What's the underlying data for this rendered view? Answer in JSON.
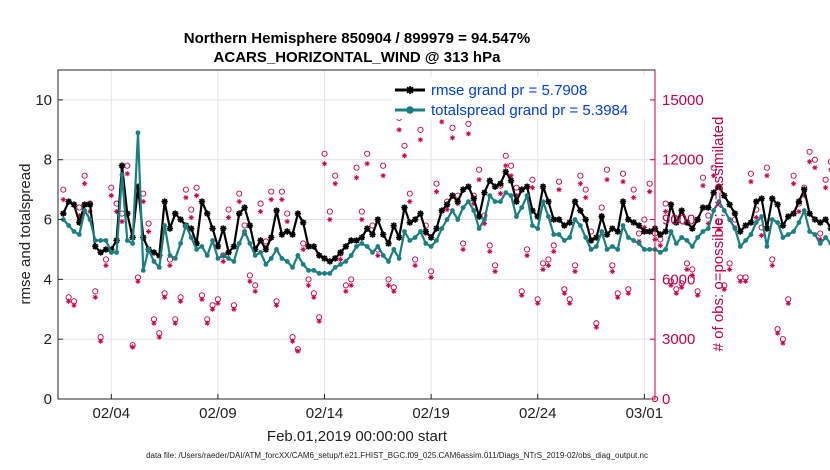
{
  "chart_data": {
    "type": "line",
    "title": "Northern Hemisphere 850904 / 899979 = 94.547%",
    "subtitle": "ACARS_HORIZONTAL_WIND @ 313 hPa",
    "xlabel": "Feb.01,2019 00:00:00 start",
    "ylabel": "rmse and totalspread",
    "ylabel_right": "# of obs: o=possible; ×=assimilated",
    "footer": "data file: /Users/raeder/DAI/ATM_forcXX/CAM6_setup/f.e21.FHIST_BGC.f09_025.CAM6assim.011/Diags_NTrS_2019-02/obs_diag_output.nc",
    "xlim": [
      1,
      29
    ],
    "ylim": [
      0,
      11
    ],
    "ylim_right": [
      0,
      16500
    ],
    "x_ticks": [
      3.5,
      8.5,
      13.5,
      18.5,
      23.5,
      28.5
    ],
    "x_tick_labels": [
      "02/04",
      "02/09",
      "02/14",
      "02/19",
      "02/24",
      "03/01"
    ],
    "y_ticks": [
      0,
      2,
      4,
      6,
      8,
      10
    ],
    "y_tick_labels": [
      "0",
      "2",
      "4",
      "6",
      "8",
      "10"
    ],
    "y_ticks_right": [
      0,
      3000,
      6000,
      9000,
      12000,
      15000
    ],
    "y_tick_labels_right": [
      "0",
      "3000",
      "6000",
      "9000",
      "12000",
      "15000"
    ],
    "grid": true,
    "legend_position": "top-right",
    "series": [
      {
        "name": "rmse grand pr = 5.7908",
        "color": "#000000",
        "marker": "asterisk",
        "axis": "left",
        "values": [
          6.2,
          6.6,
          6.5,
          5.9,
          6.5,
          6.5,
          5.1,
          4.9,
          5.0,
          5.0,
          5.3,
          7.8,
          6.2,
          5.4,
          7.1,
          5.4,
          5.0,
          4.9,
          4.8,
          6.6,
          5.7,
          6.2,
          6.0,
          5.8,
          5.7,
          5.2,
          6.6,
          6.2,
          5.7,
          5.1,
          5.7,
          4.9,
          5.1,
          6.2,
          6.4,
          5.8,
          5.0,
          5.3,
          5.0,
          5.4,
          6.3,
          5.5,
          5.6,
          5.5,
          6.2,
          5.9,
          5.1,
          5.1,
          4.8,
          4.7,
          4.6,
          4.7,
          4.9,
          5.1,
          5.3,
          5.3,
          5.4,
          5.7,
          5.5,
          6.0,
          5.5,
          5.2,
          5.8,
          5.4,
          6.4,
          5.9,
          6.0,
          6.2,
          5.6,
          5.4,
          5.7,
          6.3,
          6.5,
          6.8,
          6.6,
          7.0,
          7.1,
          6.7,
          6.1,
          6.9,
          7.3,
          7.1,
          7.2,
          7.6,
          7.3,
          6.6,
          7.0,
          7.1,
          6.3,
          6.1,
          7.1,
          6.6,
          6.0,
          6.0,
          5.8,
          5.9,
          6.6,
          6.3,
          6.0,
          5.3,
          5.4,
          6.1,
          5.5,
          5.7,
          5.6,
          6.6,
          6.0,
          5.9,
          5.8,
          5.6,
          5.6,
          5.7,
          5.5,
          5.6,
          6.5,
          5.9,
          6.3,
          5.9,
          5.7,
          6.0,
          6.4,
          6.4,
          6.9,
          7.1,
          6.8,
          6.5,
          6.2,
          5.6,
          5.8,
          5.9,
          6.6,
          6.7,
          5.7,
          6.7,
          6.5,
          5.8,
          6.1,
          6.2,
          6.6,
          7.0,
          6.2,
          6.0,
          5.9,
          6.0,
          5.7,
          6.0,
          5.6,
          5.2,
          5.8,
          5.6,
          6.7,
          6.1,
          5.4,
          5.4,
          5.2,
          5.3,
          6.0,
          5.7,
          5.5,
          5.5,
          5.3,
          5.4,
          5.2,
          4.9,
          5.2,
          5.5,
          5.6,
          5.1,
          5.0,
          5.3,
          4.9,
          5.0,
          5.2,
          5.4,
          5.5,
          4.7,
          5.1,
          5.6,
          5.6
        ]
      },
      {
        "name": "totalspread grand pr = 5.3984",
        "color": "#1a7f80",
        "marker": "dot",
        "axis": "left",
        "values": [
          6.0,
          5.8,
          5.6,
          5.5,
          6.3,
          6.0,
          5.3,
          5.3,
          5.3,
          4.9,
          4.9,
          7.5,
          5.3,
          5.2,
          8.9,
          4.3,
          5.0,
          4.6,
          4.4,
          5.8,
          4.8,
          4.7,
          5.2,
          5.8,
          5.4,
          5.0,
          5.1,
          4.8,
          5.3,
          4.7,
          4.8,
          4.7,
          4.6,
          5.2,
          5.6,
          5.2,
          4.8,
          4.9,
          4.5,
          4.7,
          5.0,
          4.7,
          4.6,
          4.4,
          4.8,
          4.5,
          4.3,
          4.3,
          4.2,
          4.2,
          4.2,
          4.4,
          4.5,
          4.6,
          4.8,
          5.1,
          5.2,
          5.1,
          4.9,
          5.1,
          4.8,
          4.6,
          5.0,
          4.7,
          5.6,
          5.3,
          5.4,
          5.6,
          5.2,
          5.1,
          5.3,
          5.7,
          6.0,
          6.3,
          6.0,
          6.4,
          6.6,
          6.3,
          5.7,
          6.0,
          6.8,
          6.6,
          6.6,
          6.9,
          6.8,
          6.1,
          6.4,
          6.8,
          5.8,
          5.7,
          6.6,
          6.1,
          5.5,
          5.5,
          5.3,
          5.4,
          6.0,
          5.8,
          5.4,
          5.0,
          5.1,
          5.6,
          5.0,
          5.1,
          5.0,
          5.8,
          5.4,
          5.3,
          5.2,
          5.0,
          5.0,
          5.0,
          4.9,
          5.0,
          5.6,
          5.2,
          5.4,
          5.3,
          5.1,
          5.4,
          5.6,
          5.7,
          6.3,
          6.6,
          6.3,
          6.0,
          5.7,
          5.1,
          5.3,
          5.5,
          5.9,
          6.1,
          5.1,
          6.0,
          5.9,
          5.4,
          5.5,
          5.6,
          5.9,
          6.3,
          5.6,
          5.5,
          5.2,
          5.4,
          5.2,
          5.3,
          5.0,
          4.8,
          5.2,
          5.1,
          5.8,
          5.5,
          4.9,
          4.9,
          4.7,
          4.8,
          5.2,
          5.0,
          4.9,
          4.9,
          4.8,
          4.8,
          4.6,
          4.5,
          4.7,
          4.8,
          4.9,
          4.7,
          4.6,
          4.8,
          4.5,
          4.6,
          4.7,
          4.8,
          4.8,
          4.4,
          4.6,
          4.7,
          4.7
        ]
      },
      {
        "name": "# of obs possible",
        "color": "#c8004a",
        "marker": "circle",
        "axis": "right",
        "values": [
          10500,
          5100,
          4900,
          9600,
          11200,
          9800,
          5400,
          3100,
          7000,
          10600,
          9800,
          9300,
          11700,
          2700,
          6100,
          10300,
          8800,
          4000,
          3300,
          5300,
          7000,
          4000,
          5100,
          10500,
          9500,
          10600,
          5200,
          4000,
          4700,
          5000,
          7200,
          9500,
          4700,
          10300,
          8700,
          6200,
          5700,
          9800,
          7900,
          10400,
          4900,
          10400,
          9300,
          3100,
          2500,
          7800,
          6000,
          5300,
          4100,
          12300,
          9400,
          11200,
          7300,
          5700,
          6000,
          11600,
          9400,
          12300,
          8700,
          7500,
          11700,
          6000,
          5600,
          14100,
          12700,
          10300,
          7000,
          13500,
          8700,
          6400,
          10800,
          14400,
          9900,
          13600,
          10200,
          7800,
          13800,
          10200,
          11500,
          9200,
          7700,
          6700,
          10700,
          12200,
          11700,
          10600,
          5400,
          7500,
          11000,
          5000,
          6800,
          7000,
          7700,
          10900,
          5500,
          5000,
          6700,
          11200,
          10500,
          8400,
          3800,
          9600,
          11500,
          6700,
          5300,
          11300,
          5500,
          10500,
          8300,
          9000,
          10800,
          8300,
          8000,
          9800,
          5900,
          5500,
          5800,
          6800,
          6500,
          5400,
          11100,
          9200,
          11600,
          8900,
          5700,
          6800,
          9000,
          6100,
          6100,
          11300,
          9500,
          8600,
          11600,
          7000,
          3500,
          3000,
          5000,
          11200,
          9800,
          10600,
          12400,
          12000,
          8300,
          11000,
          11900,
          6100,
          11700,
          2400,
          9100,
          3800,
          10200,
          8800,
          2600,
          11300,
          10000,
          11500,
          2600,
          11200,
          5500,
          5900,
          10300,
          8400,
          2800,
          11400,
          7900,
          6900,
          10500,
          5700,
          11600,
          3500,
          4900,
          3100,
          6100,
          11000,
          10400,
          5600,
          4700,
          11100,
          10400,
          7400
        ]
      },
      {
        "name": "# of obs assimilated",
        "color": "#c8004a",
        "marker": "asterisk",
        "axis": "right",
        "values": [
          10000,
          4900,
          4700,
          9200,
          10800,
          9400,
          5100,
          2900,
          6700,
          10200,
          9400,
          8900,
          11300,
          2600,
          5900,
          9900,
          8400,
          3800,
          3100,
          5100,
          6700,
          3800,
          4900,
          10100,
          9100,
          10200,
          5000,
          3800,
          4500,
          4800,
          6900,
          9100,
          4500,
          9900,
          8300,
          5900,
          5400,
          9400,
          7600,
          10000,
          4700,
          10000,
          8900,
          2900,
          2400,
          7500,
          5700,
          5100,
          3900,
          11800,
          9000,
          10800,
          7000,
          5400,
          5700,
          11100,
          9000,
          11800,
          8300,
          7200,
          11200,
          5700,
          5400,
          13500,
          12200,
          9900,
          6700,
          13000,
          8300,
          6100,
          10400,
          13900,
          9500,
          13100,
          9800,
          7500,
          13300,
          9800,
          11000,
          8800,
          7400,
          6400,
          10300,
          11700,
          11200,
          10200,
          5200,
          7200,
          10600,
          4800,
          6500,
          6700,
          7400,
          10500,
          5300,
          4800,
          6400,
          10800,
          10100,
          8000,
          3600,
          9200,
          11000,
          6400,
          5100,
          10900,
          5300,
          10100,
          7900,
          8600,
          10400,
          8000,
          7700,
          9400,
          5700,
          5300,
          5600,
          6500,
          6200,
          5200,
          10700,
          8800,
          11200,
          8500,
          5500,
          6500,
          8600,
          5900,
          5900,
          10900,
          9100,
          8200,
          11200,
          6700,
          3300,
          2800,
          4800,
          10800,
          9400,
          10200,
          11900,
          11600,
          8000,
          10600,
          11500,
          5900,
          11200,
          2300,
          8700,
          3600,
          9800,
          8400,
          2500,
          10900,
          9600,
          11000,
          2500,
          10800,
          5300,
          5700,
          9900,
          8100,
          2700,
          11000,
          7600,
          6600,
          10100,
          5500,
          11200,
          3300,
          4700,
          2900,
          5900,
          10600,
          10000,
          5400,
          4500,
          10700,
          10000,
          7100
        ]
      }
    ]
  }
}
